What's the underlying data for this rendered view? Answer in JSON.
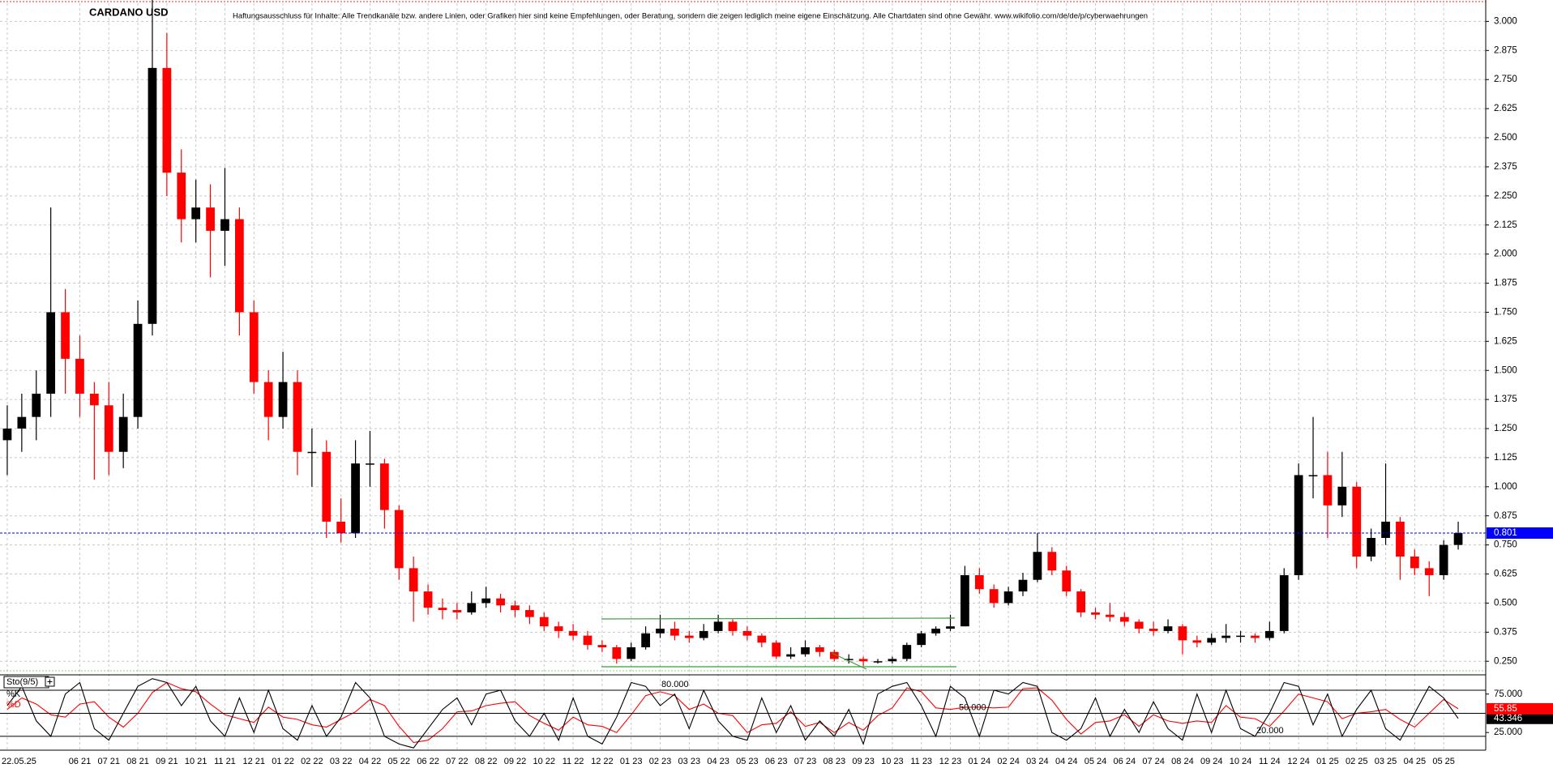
{
  "chart_data": [
    {
      "type": "candlestick",
      "title": "CARDANO USD",
      "subtitle": "Haftungsausschluss für Inhalte: Alle Trendkanäle bzw. andere Linien, oder Grafiken hier sind keine Empfehlungen, oder Beratung, sondern die zeigen lediglich meine eigene Einschätzung. Alle Chartdaten sind ohne Gewähr. www.wikifolio.com/de/de/p/cyberwaehrungen",
      "categories": [
        "22.05.25",
        null,
        null,
        null,
        null,
        "06 21",
        null,
        "07 21",
        null,
        "08 21",
        null,
        "09 21",
        null,
        "10 21",
        null,
        "11 21",
        null,
        "12 21",
        null,
        "01 22",
        null,
        "02 22",
        null,
        "03 22",
        null,
        "04 22",
        null,
        "05 22",
        null,
        "06 22",
        null,
        "07 22",
        null,
        "08 22",
        null,
        "09 22",
        null,
        "10 22",
        null,
        "11 22",
        null,
        "12 22",
        null,
        "01 23",
        null,
        "02 23",
        null,
        "03 23",
        null,
        "04 23",
        null,
        "05 23",
        null,
        "06 23",
        null,
        "07 23",
        null,
        "08 23",
        null,
        "09 23",
        null,
        "10 23",
        null,
        "11 23",
        null,
        "12 23",
        null,
        "01 24",
        null,
        "02 24",
        null,
        "03 24",
        null,
        "04 24",
        null,
        "05 24",
        null,
        "06 24",
        null,
        "07 24",
        null,
        "08 24",
        null,
        "09 24",
        null,
        "10 24",
        null,
        "11 24",
        null,
        "12 24",
        null,
        "01 25",
        null,
        "02 25",
        null,
        "03 25",
        null,
        "04 25",
        null,
        "05 25",
        null
      ],
      "open": [
        1.2,
        1.25,
        1.3,
        1.4,
        1.75,
        1.55,
        1.4,
        1.35,
        1.15,
        1.3,
        1.7,
        2.8,
        2.35,
        2.15,
        2.2,
        2.1,
        2.15,
        1.75,
        1.45,
        1.3,
        1.45,
        1.15,
        1.15,
        0.85,
        0.8,
        1.1,
        1.1,
        0.9,
        0.65,
        0.55,
        0.48,
        0.47,
        0.46,
        0.5,
        0.52,
        0.49,
        0.47,
        0.44,
        0.4,
        0.38,
        0.36,
        0.32,
        0.31,
        0.26,
        0.31,
        0.37,
        0.39,
        0.36,
        0.35,
        0.38,
        0.42,
        0.38,
        0.36,
        0.33,
        0.27,
        0.28,
        0.31,
        0.29,
        0.26,
        0.26,
        0.25,
        0.25,
        0.26,
        0.32,
        0.37,
        0.39,
        0.4,
        0.62,
        0.56,
        0.5,
        0.55,
        0.6,
        0.72,
        0.64,
        0.55,
        0.46,
        0.45,
        0.44,
        0.42,
        0.39,
        0.38,
        0.4,
        0.34,
        0.33,
        0.35,
        0.36,
        0.36,
        0.35,
        0.38,
        0.62,
        1.05,
        1.05,
        0.92,
        1.0,
        0.7,
        0.78,
        0.85,
        0.7,
        0.65,
        0.62,
        0.75
      ],
      "high": [
        1.35,
        1.4,
        1.5,
        2.2,
        1.85,
        1.65,
        1.45,
        1.45,
        1.4,
        1.8,
        3.1,
        2.95,
        2.45,
        2.32,
        2.3,
        2.37,
        2.2,
        1.8,
        1.5,
        1.58,
        1.5,
        1.25,
        1.2,
        0.95,
        1.2,
        1.24,
        1.12,
        0.92,
        0.7,
        0.58,
        0.52,
        0.5,
        0.55,
        0.57,
        0.54,
        0.51,
        0.49,
        0.46,
        0.42,
        0.41,
        0.38,
        0.34,
        0.32,
        0.33,
        0.4,
        0.45,
        0.42,
        0.38,
        0.41,
        0.45,
        0.43,
        0.4,
        0.37,
        0.34,
        0.31,
        0.34,
        0.32,
        0.3,
        0.28,
        0.27,
        0.26,
        0.27,
        0.33,
        0.38,
        0.4,
        0.45,
        0.66,
        0.65,
        0.58,
        0.57,
        0.63,
        0.8,
        0.74,
        0.66,
        0.56,
        0.48,
        0.5,
        0.46,
        0.43,
        0.42,
        0.43,
        0.41,
        0.36,
        0.37,
        0.41,
        0.38,
        0.37,
        0.42,
        0.65,
        1.1,
        1.3,
        1.15,
        1.15,
        1.02,
        0.82,
        1.1,
        0.87,
        0.73,
        0.68,
        0.77,
        0.85
      ],
      "low": [
        1.05,
        1.15,
        1.2,
        1.3,
        1.4,
        1.3,
        1.03,
        1.05,
        1.08,
        1.25,
        1.65,
        2.25,
        2.05,
        2.05,
        1.9,
        1.95,
        1.65,
        1.4,
        1.2,
        1.25,
        1.05,
        1.0,
        0.78,
        0.76,
        0.78,
        1.0,
        0.82,
        0.6,
        0.42,
        0.45,
        0.43,
        0.43,
        0.45,
        0.48,
        0.46,
        0.44,
        0.41,
        0.38,
        0.35,
        0.34,
        0.3,
        0.29,
        0.24,
        0.25,
        0.3,
        0.35,
        0.34,
        0.33,
        0.34,
        0.37,
        0.36,
        0.34,
        0.31,
        0.26,
        0.26,
        0.27,
        0.27,
        0.25,
        0.24,
        0.23,
        0.24,
        0.24,
        0.25,
        0.31,
        0.36,
        0.38,
        0.4,
        0.54,
        0.48,
        0.49,
        0.53,
        0.59,
        0.62,
        0.53,
        0.44,
        0.43,
        0.42,
        0.4,
        0.37,
        0.36,
        0.37,
        0.28,
        0.31,
        0.32,
        0.33,
        0.33,
        0.33,
        0.34,
        0.37,
        0.6,
        0.95,
        0.78,
        0.87,
        0.65,
        0.68,
        0.75,
        0.6,
        0.62,
        0.53,
        0.6,
        0.73
      ],
      "close": [
        1.25,
        1.3,
        1.4,
        1.75,
        1.55,
        1.4,
        1.35,
        1.15,
        1.3,
        1.7,
        2.8,
        2.35,
        2.15,
        2.2,
        2.1,
        2.15,
        1.75,
        1.45,
        1.3,
        1.45,
        1.15,
        1.15,
        0.85,
        0.8,
        1.1,
        1.1,
        0.9,
        0.65,
        0.55,
        0.48,
        0.47,
        0.46,
        0.5,
        0.52,
        0.49,
        0.47,
        0.44,
        0.4,
        0.38,
        0.36,
        0.32,
        0.31,
        0.26,
        0.31,
        0.37,
        0.39,
        0.36,
        0.35,
        0.38,
        0.42,
        0.38,
        0.36,
        0.33,
        0.27,
        0.28,
        0.31,
        0.29,
        0.26,
        0.26,
        0.25,
        0.25,
        0.26,
        0.32,
        0.37,
        0.39,
        0.4,
        0.62,
        0.56,
        0.5,
        0.55,
        0.6,
        0.72,
        0.64,
        0.55,
        0.46,
        0.45,
        0.44,
        0.42,
        0.39,
        0.38,
        0.4,
        0.34,
        0.33,
        0.35,
        0.36,
        0.36,
        0.35,
        0.38,
        0.62,
        1.05,
        1.05,
        0.92,
        1.0,
        0.7,
        0.78,
        0.85,
        0.7,
        0.65,
        0.62,
        0.75,
        0.801
      ],
      "up_color": "#000000",
      "down_color": "#ff0000",
      "last_price_color": "#0000ff",
      "ylim": [
        0.216,
        3.085
      ],
      "yticks": [
        {
          "value": 0.25,
          "label": "0.250"
        },
        0.375,
        {
          "value": 0.5,
          "label": "0.500"
        },
        0.625,
        {
          "value": 0.75,
          "label": "0.750"
        },
        0.875,
        {
          "value": 1,
          "label": "1.000"
        },
        1.125,
        {
          "value": 1.25,
          "label": "1.250"
        },
        1.375,
        {
          "value": 1.5,
          "label": "1.500"
        },
        1.625,
        {
          "value": 1.75,
          "label": "1.750"
        },
        1.875,
        {
          "value": 2,
          "label": "2.000"
        },
        2.125,
        {
          "value": 2.25,
          "label": "2.250"
        },
        2.375,
        {
          "value": 2.5,
          "label": "2.500"
        },
        2.625,
        {
          "value": 2.75,
          "label": "2.750"
        },
        2.875,
        {
          "value": 3,
          "label": "3.000"
        }
      ],
      "grid": true
    },
    {
      "type": "line",
      "title": "Sto(9/5)",
      "series": [
        {
          "name": "%K",
          "color": "#000000",
          "values": [
            60,
            85,
            40,
            20,
            75,
            90,
            30,
            15,
            50,
            85,
            95,
            90,
            60,
            85,
            40,
            20,
            70,
            25,
            80,
            30,
            15,
            60,
            20,
            45,
            90,
            70,
            20,
            10,
            5,
            30,
            55,
            70,
            35,
            75,
            80,
            40,
            20,
            50,
            15,
            70,
            20,
            10,
            45,
            90,
            85,
            60,
            75,
            30,
            80,
            40,
            20,
            15,
            70,
            25,
            60,
            15,
            40,
            20,
            55,
            10,
            75,
            85,
            90,
            60,
            20,
            85,
            70,
            20,
            80,
            75,
            90,
            85,
            25,
            15,
            30,
            70,
            20,
            55,
            25,
            65,
            30,
            15,
            75,
            25,
            80,
            30,
            20,
            50,
            90,
            85,
            35,
            75,
            20,
            55,
            80,
            30,
            15,
            50,
            85,
            70,
            43.346
          ]
        },
        {
          "name": "%D",
          "color": "#ff0000",
          "values": [
            55,
            70,
            62,
            48,
            45,
            62,
            65,
            45,
            32,
            50,
            77,
            90,
            82,
            78,
            62,
            48,
            43,
            38,
            58,
            45,
            42,
            35,
            32,
            42,
            52,
            68,
            60,
            33,
            12,
            15,
            30,
            52,
            53,
            60,
            63,
            65,
            47,
            37,
            28,
            45,
            35,
            33,
            25,
            48,
            73,
            78,
            73,
            55,
            62,
            50,
            47,
            25,
            35,
            37,
            52,
            33,
            38,
            25,
            38,
            28,
            47,
            57,
            83,
            78,
            57,
            55,
            58,
            58,
            57,
            58,
            82,
            83,
            67,
            42,
            23,
            38,
            40,
            48,
            33,
            48,
            40,
            37,
            40,
            38,
            60,
            45,
            43,
            33,
            53,
            75,
            70,
            65,
            43,
            50,
            52,
            55,
            42,
            32,
            50,
            68,
            55.85
          ]
        }
      ],
      "ylim": [
        2,
        100
      ],
      "yticks": [
        {
          "value": 75,
          "label": "75.000"
        },
        {
          "value": 25,
          "label": "25.000"
        }
      ],
      "levels": [
        {
          "value": 80,
          "label": "80.000"
        },
        {
          "value": 50,
          "label": "50.000"
        },
        {
          "value": 20,
          "label": "20.000"
        }
      ]
    }
  ]
}
